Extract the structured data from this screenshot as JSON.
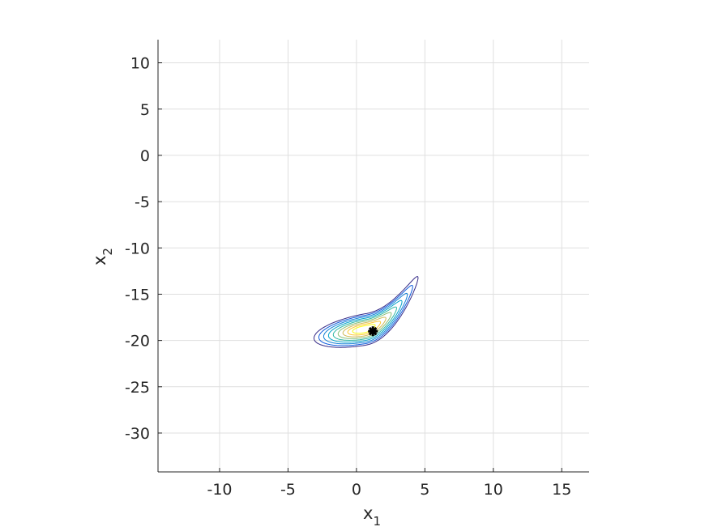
{
  "chart_data": {
    "type": "contour",
    "title": "",
    "xlabel": "x",
    "xlabel_subscript": "1",
    "ylabel": "x",
    "ylabel_subscript": "2",
    "xlim": [
      -14.5,
      17
    ],
    "ylim": [
      -34.2,
      12.5
    ],
    "xticks": [
      -10,
      -5,
      0,
      5,
      10,
      15
    ],
    "yticks": [
      10,
      5,
      0,
      -5,
      -10,
      -15,
      -20,
      -25,
      -30
    ],
    "xtick_labels": [
      "-10",
      "-5",
      "0",
      "5",
      "10",
      "15"
    ],
    "ytick_labels": [
      "10",
      "5",
      "0",
      "-5",
      "-10",
      "-15",
      "-20",
      "-25",
      "-30"
    ],
    "grid": true,
    "colormap": [
      "#352a87",
      "#0f5cdd",
      "#1481d6",
      "#06a4ca",
      "#2eb7a4",
      "#87bf77",
      "#d1bb59",
      "#fec832",
      "#f9fb0e"
    ],
    "contour_levels": 9,
    "density_shape": "banana",
    "density_mode": [
      0.5,
      -18.8
    ],
    "marker": {
      "x": 1.2,
      "y": -19.0,
      "symbol": "asterisk",
      "color": "#000000"
    }
  }
}
